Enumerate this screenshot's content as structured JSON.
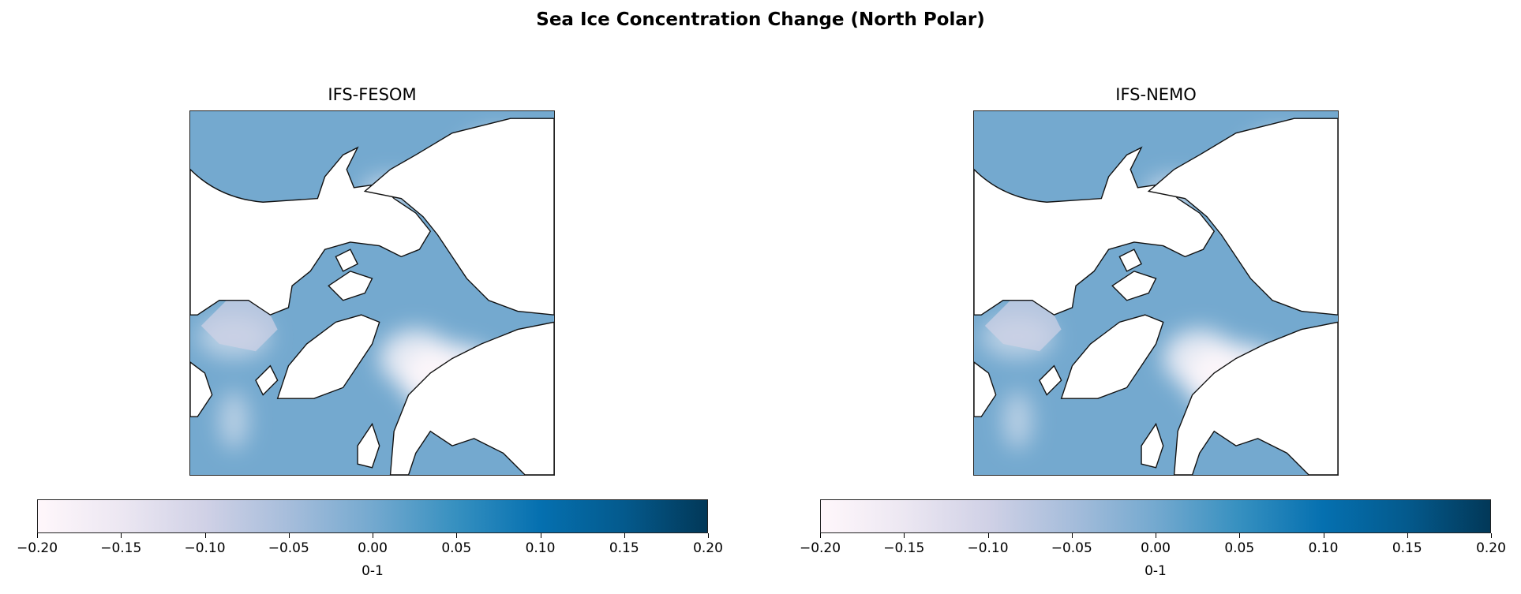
{
  "title": "Sea Ice Concentration Change (North Polar)",
  "colormap": [
    "#fff7fb",
    "#ece7f2",
    "#d0d1e6",
    "#a6bddb",
    "#74a9cf",
    "#3690c0",
    "#0570b0",
    "#045a8d",
    "#023858"
  ],
  "panels": [
    {
      "title": "IFS-FESOM",
      "colorbar": {
        "label": "0-1",
        "min": -0.2,
        "max": 0.2,
        "ticks": [
          "−0.20",
          "−0.15",
          "−0.10",
          "−0.05",
          "0.00",
          "0.05",
          "0.10",
          "0.15",
          "0.20"
        ]
      }
    },
    {
      "title": "IFS-NEMO",
      "colorbar": {
        "label": "0-1",
        "min": -0.2,
        "max": 0.2,
        "ticks": [
          "−0.20",
          "−0.15",
          "−0.10",
          "−0.05",
          "0.00",
          "0.05",
          "0.10",
          "0.15",
          "0.20"
        ]
      }
    }
  ]
}
